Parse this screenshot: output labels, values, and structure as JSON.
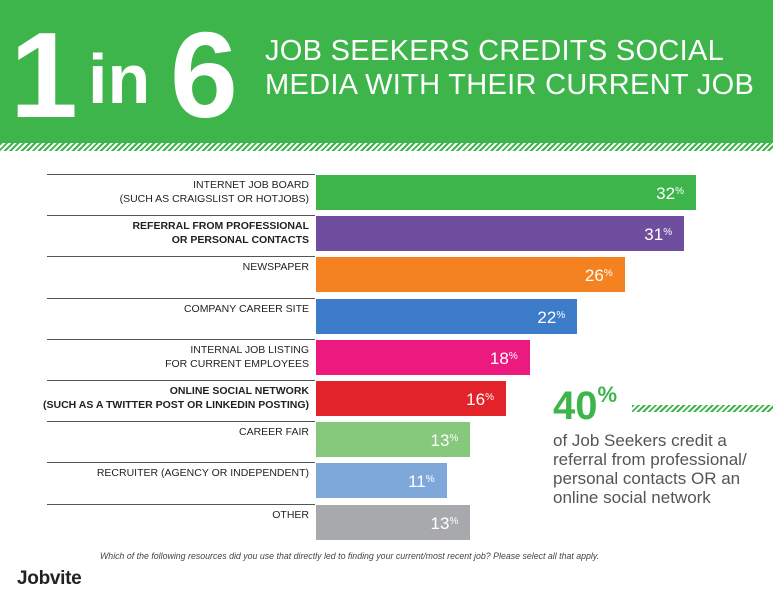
{
  "header": {
    "big_one": "1",
    "big_in": "in",
    "big_six": "6",
    "headline": "JOB SEEKERS CREDITS SOCIAL MEDIA WITH THEIR CURRENT JOB"
  },
  "colors": {
    "brand_green": "#3db54a"
  },
  "chart_data": {
    "type": "bar",
    "orientation": "horizontal",
    "categories": [
      "INTERNET JOB BOARD\n(SUCH AS CRAIGSLIST OR HOTJOBS)",
      "REFERRAL FROM PROFESSIONAL\nOR PERSONAL CONTACTS",
      "NEWSPAPER",
      "COMPANY CAREER SITE",
      "INTERNAL JOB LISTING\nFOR CURRENT EMPLOYEES",
      "ONLINE SOCIAL NETWORK\n(SUCH AS A TWITTER POST OR LINKEDIN POSTING)",
      "CAREER FAIR",
      "RECRUITER (AGENCY OR INDEPENDENT)",
      "OTHER"
    ],
    "values": [
      32,
      31,
      26,
      22,
      18,
      16,
      13,
      11,
      13
    ],
    "value_labels": [
      "32",
      "31",
      "26",
      "22",
      "18",
      "16",
      "13",
      "11",
      "13"
    ],
    "unit": "%",
    "bold_categories": [
      1,
      5
    ],
    "bar_colors": [
      "#3db54a",
      "#6f4e9e",
      "#f58220",
      "#3d7cc9",
      "#ec1a7e",
      "#e2242a",
      "#86c87c",
      "#7ea8d9",
      "#a7a9ac"
    ],
    "xlim": [
      0,
      32
    ],
    "grid": false,
    "legend": "none"
  },
  "callout": {
    "percent": "40",
    "percent_sign": "%",
    "text": "of Job Seekers credit a referral from professional/ personal contacts OR an online social network"
  },
  "footnote": "Which of the following resources did you use that directly led to finding your current/most recent job?  Please select all that apply.",
  "brand": {
    "logo_text": "Jobvite"
  }
}
